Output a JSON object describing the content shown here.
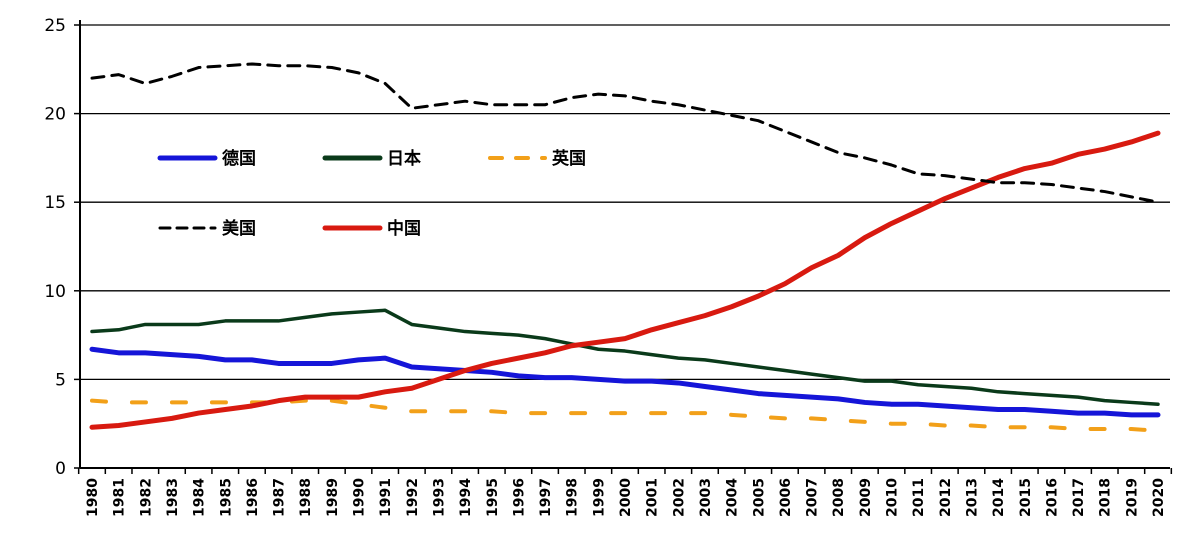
{
  "chart_data": {
    "type": "line",
    "title": "",
    "xlabel": "",
    "ylabel": "",
    "ylim": [
      0,
      25
    ],
    "yticks": [
      0,
      5,
      10,
      15,
      20,
      25
    ],
    "grid": "horizontal",
    "legend_placement": "inside-top-left",
    "x": [
      1980,
      1981,
      1982,
      1983,
      1984,
      1985,
      1986,
      1987,
      1988,
      1989,
      1990,
      1991,
      1992,
      1993,
      1994,
      1995,
      1996,
      1997,
      1998,
      1999,
      2000,
      2001,
      2002,
      2003,
      2004,
      2005,
      2006,
      2007,
      2008,
      2009,
      2010,
      2011,
      2012,
      2013,
      2014,
      2015,
      2016,
      2017,
      2018,
      2019,
      2020
    ],
    "series": [
      {
        "name": "德国",
        "color": "#1515d8",
        "dash": false,
        "values": [
          6.7,
          6.5,
          6.5,
          6.4,
          6.3,
          6.1,
          6.1,
          5.9,
          5.9,
          5.9,
          6.1,
          6.2,
          5.7,
          5.6,
          5.5,
          5.4,
          5.2,
          5.1,
          5.1,
          5.0,
          4.9,
          4.9,
          4.8,
          4.6,
          4.4,
          4.2,
          4.1,
          4.0,
          3.9,
          3.7,
          3.6,
          3.6,
          3.5,
          3.4,
          3.3,
          3.3,
          3.2,
          3.1,
          3.1,
          3.0,
          3.0
        ]
      },
      {
        "name": "日本",
        "color": "#0a3a1a",
        "dash": false,
        "values": [
          7.7,
          7.8,
          8.1,
          8.1,
          8.1,
          8.3,
          8.3,
          8.3,
          8.5,
          8.7,
          8.8,
          8.9,
          8.1,
          7.9,
          7.7,
          7.6,
          7.5,
          7.3,
          7.0,
          6.7,
          6.6,
          6.4,
          6.2,
          6.1,
          5.9,
          5.7,
          5.5,
          5.3,
          5.1,
          4.9,
          4.9,
          4.7,
          4.6,
          4.5,
          4.3,
          4.2,
          4.1,
          4.0,
          3.8,
          3.7,
          3.6
        ]
      },
      {
        "name": "英国",
        "color": "#f2a019",
        "dash": true,
        "values": [
          3.8,
          3.7,
          3.7,
          3.7,
          3.7,
          3.7,
          3.7,
          3.7,
          3.8,
          3.8,
          3.6,
          3.4,
          3.2,
          3.2,
          3.2,
          3.2,
          3.1,
          3.1,
          3.1,
          3.1,
          3.1,
          3.1,
          3.1,
          3.1,
          3.0,
          2.9,
          2.8,
          2.8,
          2.7,
          2.6,
          2.5,
          2.5,
          2.4,
          2.4,
          2.3,
          2.3,
          2.3,
          2.2,
          2.2,
          2.2,
          2.1
        ]
      },
      {
        "name": "美国",
        "color": "#000000",
        "dash": true,
        "values": [
          22.0,
          22.2,
          21.7,
          22.1,
          22.6,
          22.7,
          22.8,
          22.7,
          22.7,
          22.6,
          22.3,
          21.7,
          20.3,
          20.5,
          20.7,
          20.5,
          20.5,
          20.5,
          20.9,
          21.1,
          21.0,
          20.7,
          20.5,
          20.2,
          19.9,
          19.6,
          19.0,
          18.4,
          17.8,
          17.5,
          17.1,
          16.6,
          16.5,
          16.3,
          16.1,
          16.1,
          16.0,
          15.8,
          15.6,
          15.3,
          15.0
        ]
      },
      {
        "name": "中国",
        "color": "#d81a10",
        "dash": false,
        "values": [
          2.3,
          2.4,
          2.6,
          2.8,
          3.1,
          3.3,
          3.5,
          3.8,
          4.0,
          4.0,
          4.0,
          4.3,
          4.5,
          5.0,
          5.5,
          5.9,
          6.2,
          6.5,
          6.9,
          7.1,
          7.3,
          7.8,
          8.2,
          8.6,
          9.1,
          9.7,
          10.4,
          11.3,
          12.0,
          13.0,
          13.8,
          14.5,
          15.2,
          15.8,
          16.4,
          16.9,
          17.2,
          17.7,
          18.0,
          18.4,
          18.9
        ]
      }
    ]
  }
}
